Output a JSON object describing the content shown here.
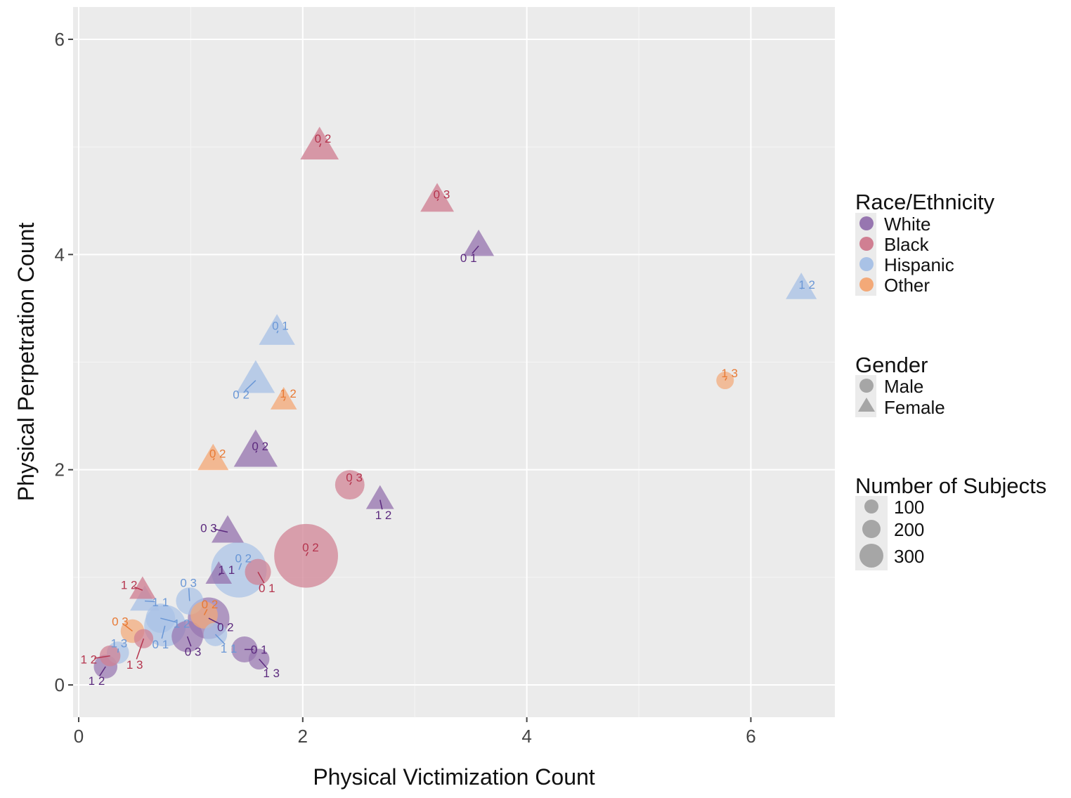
{
  "chart_data": {
    "type": "scatter",
    "xlabel": "Physical Victimization Count",
    "ylabel": "Physical Perpetration Count",
    "xlim": [
      -0.05,
      6.75
    ],
    "ylim": [
      -0.3,
      6.3
    ],
    "x_ticks": [
      0,
      2,
      4,
      6
    ],
    "y_ticks": [
      0,
      2,
      4,
      6
    ],
    "grid": true,
    "legend_position": "right",
    "colors": {
      "White": "#9776b0",
      "Black": "#d07f92",
      "Hispanic": "#a9c2e6",
      "Other": "#f3a978"
    },
    "label_colors": {
      "White": "#5c2a7e",
      "Black": "#b5354e",
      "Hispanic": "#6a97d6",
      "Other": "#e87a35"
    },
    "legends": {
      "race": {
        "title": "Race/Ethnicity",
        "items": [
          "White",
          "Black",
          "Hispanic",
          "Other"
        ]
      },
      "gender": {
        "title": "Gender",
        "items": [
          "Male",
          "Female"
        ]
      },
      "size": {
        "title": "Number of Subjects",
        "items": [
          100,
          200,
          300
        ]
      }
    },
    "points": [
      {
        "x": 2.15,
        "y": 5.0,
        "race": "Black",
        "gender": "Female",
        "n": 85,
        "label": "0 2",
        "lx": 2.18,
        "ly": 5.08
      },
      {
        "x": 3.2,
        "y": 4.5,
        "race": "Black",
        "gender": "Female",
        "n": 65,
        "label": "0 3",
        "lx": 3.24,
        "ly": 4.56
      },
      {
        "x": 3.57,
        "y": 4.08,
        "race": "White",
        "gender": "Female",
        "n": 55,
        "label": "0 1",
        "lx": 3.48,
        "ly": 3.97
      },
      {
        "x": 6.45,
        "y": 3.68,
        "race": "Hispanic",
        "gender": "Female",
        "n": 55,
        "label": "1 2",
        "lx": 6.5,
        "ly": 3.72
      },
      {
        "x": 5.77,
        "y": 2.83,
        "race": "Other",
        "gender": "Male",
        "n": 25,
        "label": "1 3",
        "lx": 5.81,
        "ly": 2.9
      },
      {
        "x": 1.77,
        "y": 3.27,
        "race": "Hispanic",
        "gender": "Female",
        "n": 75,
        "label": "0 1",
        "lx": 1.8,
        "ly": 3.34
      },
      {
        "x": 1.58,
        "y": 2.83,
        "race": "Hispanic",
        "gender": "Female",
        "n": 85,
        "label": "0 2",
        "lx": 1.45,
        "ly": 2.7
      },
      {
        "x": 1.83,
        "y": 2.64,
        "race": "Other",
        "gender": "Female",
        "n": 40,
        "label": "1 2",
        "lx": 1.87,
        "ly": 2.71
      },
      {
        "x": 1.58,
        "y": 2.16,
        "race": "White",
        "gender": "Female",
        "n": 110,
        "label": "0 2",
        "lx": 1.62,
        "ly": 2.22
      },
      {
        "x": 1.2,
        "y": 2.09,
        "race": "Other",
        "gender": "Female",
        "n": 55,
        "label": "0 2",
        "lx": 1.24,
        "ly": 2.15
      },
      {
        "x": 2.42,
        "y": 1.86,
        "race": "Black",
        "gender": "Male",
        "n": 70,
        "label": "0 3",
        "lx": 2.46,
        "ly": 1.93
      },
      {
        "x": 2.69,
        "y": 1.72,
        "race": "White",
        "gender": "Female",
        "n": 45,
        "label": "1 2",
        "lx": 2.72,
        "ly": 1.58
      },
      {
        "x": 2.03,
        "y": 1.2,
        "race": "Black",
        "gender": "Male",
        "n": 330,
        "label": "0 2",
        "lx": 2.07,
        "ly": 1.28
      },
      {
        "x": 1.33,
        "y": 1.42,
        "race": "White",
        "gender": "Female",
        "n": 60,
        "label": "0 3",
        "lx": 1.16,
        "ly": 1.46
      },
      {
        "x": 1.43,
        "y": 1.07,
        "race": "Hispanic",
        "gender": "Male",
        "n": 250,
        "label": "0 2",
        "lx": 1.47,
        "ly": 1.18
      },
      {
        "x": 1.6,
        "y": 1.05,
        "race": "Black",
        "gender": "Male",
        "n": 55,
        "label": "0 1",
        "lx": 1.68,
        "ly": 0.9
      },
      {
        "x": 1.25,
        "y": 1.02,
        "race": "White",
        "gender": "Female",
        "n": 40,
        "label": "1 1",
        "lx": 1.32,
        "ly": 1.07
      },
      {
        "x": 0.57,
        "y": 0.88,
        "race": "Black",
        "gender": "Female",
        "n": 40,
        "label": "1 2",
        "lx": 0.45,
        "ly": 0.93
      },
      {
        "x": 0.59,
        "y": 0.78,
        "race": "Hispanic",
        "gender": "Female",
        "n": 50,
        "label": "1 1",
        "lx": 0.73,
        "ly": 0.77
      },
      {
        "x": 0.99,
        "y": 0.78,
        "race": "Hispanic",
        "gender": "Male",
        "n": 60,
        "label": "0 3",
        "lx": 0.98,
        "ly": 0.95
      },
      {
        "x": 0.73,
        "y": 0.62,
        "race": "Hispanic",
        "gender": "Male",
        "n": 70,
        "label": "1 2",
        "lx": 0.92,
        "ly": 0.57
      },
      {
        "x": 0.77,
        "y": 0.55,
        "race": "Hispanic",
        "gender": "Male",
        "n": 140,
        "label": "0 1",
        "lx": 0.73,
        "ly": 0.38
      },
      {
        "x": 1.16,
        "y": 0.62,
        "race": "White",
        "gender": "Male",
        "n": 140,
        "label": "0 2",
        "lx": 1.31,
        "ly": 0.54
      },
      {
        "x": 1.12,
        "y": 0.65,
        "race": "Other",
        "gender": "Male",
        "n": 60,
        "label": "0 2",
        "lx": 1.17,
        "ly": 0.75
      },
      {
        "x": 0.97,
        "y": 0.45,
        "race": "White",
        "gender": "Male",
        "n": 80,
        "label": "0 3",
        "lx": 1.02,
        "ly": 0.31
      },
      {
        "x": 1.22,
        "y": 0.47,
        "race": "Hispanic",
        "gender": "Male",
        "n": 45,
        "label": "1 1",
        "lx": 1.34,
        "ly": 0.34
      },
      {
        "x": 1.48,
        "y": 0.33,
        "race": "White",
        "gender": "Male",
        "n": 55,
        "label": "0 1",
        "lx": 1.61,
        "ly": 0.33
      },
      {
        "x": 1.61,
        "y": 0.24,
        "race": "White",
        "gender": "Male",
        "n": 35,
        "label": "1 3",
        "lx": 1.72,
        "ly": 0.11
      },
      {
        "x": 0.48,
        "y": 0.5,
        "race": "Other",
        "gender": "Male",
        "n": 45,
        "label": "0 3",
        "lx": 0.37,
        "ly": 0.59
      },
      {
        "x": 0.58,
        "y": 0.43,
        "race": "Black",
        "gender": "Male",
        "n": 30,
        "label": "1 3",
        "lx": 0.5,
        "ly": 0.19
      },
      {
        "x": 0.35,
        "y": 0.3,
        "race": "Hispanic",
        "gender": "Male",
        "n": 40,
        "label": "1 3",
        "lx": 0.36,
        "ly": 0.39
      },
      {
        "x": 0.28,
        "y": 0.27,
        "race": "Black",
        "gender": "Male",
        "n": 35,
        "label": "1 2",
        "lx": 0.09,
        "ly": 0.24
      },
      {
        "x": 0.24,
        "y": 0.17,
        "race": "White",
        "gender": "Male",
        "n": 45,
        "label": "1 2",
        "lx": 0.16,
        "ly": 0.04
      }
    ]
  }
}
